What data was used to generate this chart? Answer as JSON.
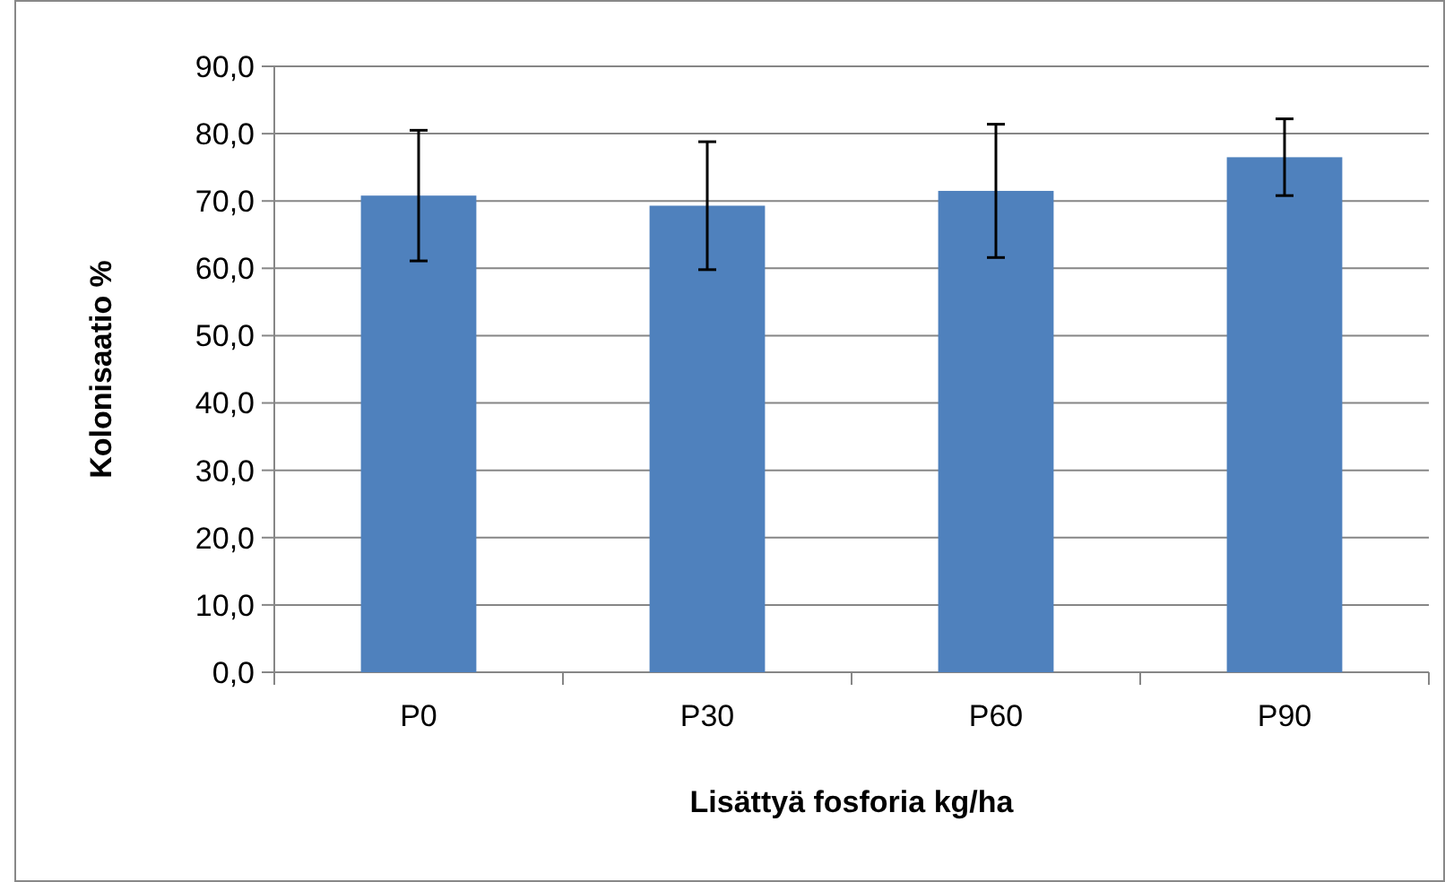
{
  "chart_data": {
    "type": "bar",
    "xlabel": "Lisättyä fosforia kg/ha",
    "ylabel": "Kolonisaatio %",
    "categories": [
      "P0",
      "P30",
      "P60",
      "P90"
    ],
    "values": [
      70.8,
      69.3,
      71.5,
      76.5
    ],
    "errors": [
      9.7,
      9.5,
      9.9,
      5.7
    ],
    "color": "#4f81bd",
    "ylim": [
      0,
      90
    ],
    "yticks": [
      {
        "value": 0,
        "label": "0,0"
      },
      {
        "value": 10,
        "label": "10,0"
      },
      {
        "value": 20,
        "label": "20,0"
      },
      {
        "value": 30,
        "label": "30,0"
      },
      {
        "value": 40,
        "label": "40,0"
      },
      {
        "value": 50,
        "label": "50,0"
      },
      {
        "value": 60,
        "label": "60,0"
      },
      {
        "value": 70,
        "label": "70,0"
      },
      {
        "value": 80,
        "label": "80,0"
      },
      {
        "value": 90,
        "label": "90,0"
      }
    ],
    "grid": "y"
  }
}
